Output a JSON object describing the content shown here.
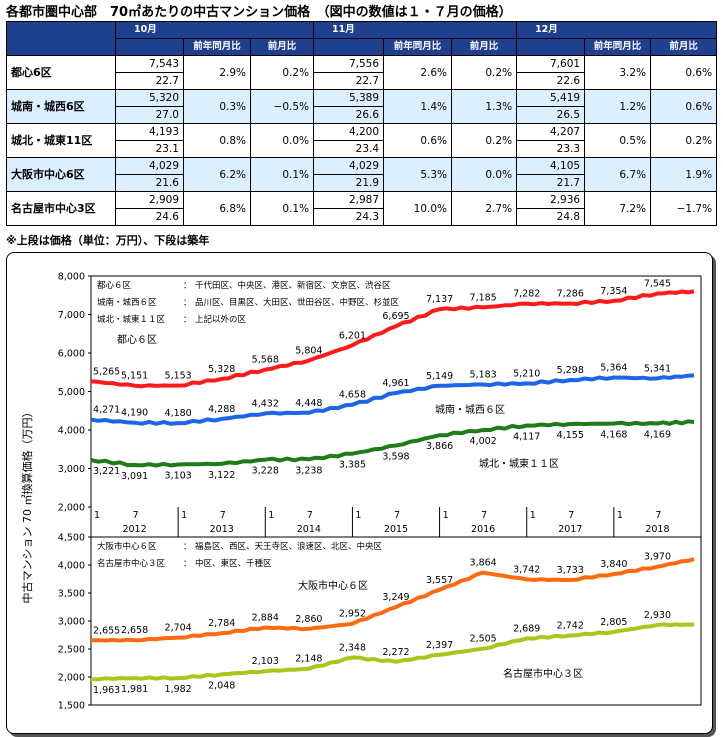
{
  "title": "各都市圏中心部　70㎡あたりの中古マンション価格　（図中の数値は１・７月の価格）",
  "table": {
    "months": [
      "10月",
      "11月",
      "12月"
    ],
    "sub_headers": [
      "前年同月比",
      "前月比"
    ],
    "rows": [
      {
        "name": "都心6区",
        "cells": [
          {
            "price": "7,543",
            "age": "22.7",
            "yoy": "2.9%",
            "mom": "0.2%"
          },
          {
            "price": "7,556",
            "age": "22.7",
            "yoy": "2.6%",
            "mom": "0.2%"
          },
          {
            "price": "7,601",
            "age": "22.6",
            "yoy": "3.2%",
            "mom": "0.6%"
          }
        ]
      },
      {
        "name": "城南・城西6区",
        "cells": [
          {
            "price": "5,320",
            "age": "27.0",
            "yoy": "0.3%",
            "mom": "−0.5%"
          },
          {
            "price": "5,389",
            "age": "26.6",
            "yoy": "1.4%",
            "mom": "1.3%"
          },
          {
            "price": "5,419",
            "age": "26.5",
            "yoy": "1.2%",
            "mom": "0.6%"
          }
        ]
      },
      {
        "name": "城北・城東11区",
        "cells": [
          {
            "price": "4,193",
            "age": "23.1",
            "yoy": "0.8%",
            "mom": "0.0%"
          },
          {
            "price": "4,200",
            "age": "23.4",
            "yoy": "0.6%",
            "mom": "0.2%"
          },
          {
            "price": "4,207",
            "age": "23.3",
            "yoy": "0.5%",
            "mom": "0.2%"
          }
        ]
      },
      {
        "name": "大阪市中心6区",
        "cells": [
          {
            "price": "4,029",
            "age": "21.6",
            "yoy": "6.2%",
            "mom": "0.1%"
          },
          {
            "price": "4,029",
            "age": "21.9",
            "yoy": "5.3%",
            "mom": "0.0%"
          },
          {
            "price": "4,105",
            "age": "21.7",
            "yoy": "6.7%",
            "mom": "1.9%"
          }
        ]
      },
      {
        "name": "名古屋市中心3区",
        "cells": [
          {
            "price": "2,909",
            "age": "24.6",
            "yoy": "6.8%",
            "mom": "0.1%"
          },
          {
            "price": "2,987",
            "age": "24.3",
            "yoy": "10.0%",
            "mom": "2.7%"
          },
          {
            "price": "2,936",
            "age": "24.8",
            "yoy": "7.2%",
            "mom": "−1.7%"
          }
        ]
      }
    ]
  },
  "note": "※上段は価格（単位：万円）、下段は築年",
  "colors": {
    "red": "#ff1a1a",
    "blue": "#1e64e8",
    "green": "#1f7a1a",
    "orange": "#ff6a10",
    "yellowgreen": "#a6c81a",
    "header": "#1f3f8f",
    "alt_row": "#dcefff"
  },
  "chart_data": [
    {
      "type": "line",
      "ylabel": "中古マンション 70 ㎡換算価格（万円）",
      "ylim": [
        2000,
        8000
      ],
      "yticks": [
        "8,000",
        "7,000",
        "6,000",
        "5,000",
        "4,000",
        "3,000",
        "2,000"
      ],
      "x_month_labels": [
        "1",
        "7",
        "1",
        "7",
        "1",
        "7",
        "1",
        "7",
        "1",
        "7",
        "1",
        "7",
        "1",
        "7"
      ],
      "x_year_labels": [
        "2012",
        "2013",
        "2014",
        "2015",
        "2016",
        "2017",
        "2018"
      ],
      "x_range": [
        2012.0,
        2019.0
      ],
      "legend_notes": [
        {
          "key": "都心６区",
          "value": "千代田区、中央区、港区、新宿区、文京区、渋谷区"
        },
        {
          "key": "城南・城西６区",
          "value": "品川区、目黒区、大田区、世田谷区、中野区、杉並区"
        },
        {
          "key": "城北・城東１１区",
          "value": "上記以外の区"
        }
      ],
      "series": [
        {
          "name": "都心６区",
          "color": "red",
          "x": [
            2012.0,
            2012.5,
            2013.0,
            2013.5,
            2014.0,
            2014.5,
            2015.0,
            2015.5,
            2016.0,
            2016.5,
            2017.0,
            2017.5,
            2018.0,
            2018.5,
            2018.92
          ],
          "y": [
            5265,
            5151,
            5153,
            5328,
            5568,
            5804,
            6201,
            6695,
            7137,
            7185,
            7282,
            7286,
            7354,
            7545,
            7601
          ],
          "labels": [
            "5,265",
            "5,151",
            "5,153",
            "5,328",
            "5,568",
            "5,804",
            "6,201",
            "6,695",
            "7,137",
            "7,185",
            "7,282",
            "7,286",
            "7,354",
            "7,545",
            ""
          ]
        },
        {
          "name": "城南・城西６区",
          "color": "blue",
          "x": [
            2012.0,
            2012.5,
            2013.0,
            2013.5,
            2014.0,
            2014.5,
            2015.0,
            2015.5,
            2016.0,
            2016.5,
            2017.0,
            2017.5,
            2018.0,
            2018.5,
            2018.92
          ],
          "y": [
            4271,
            4190,
            4180,
            4288,
            4432,
            4448,
            4658,
            4961,
            5149,
            5183,
            5210,
            5298,
            5364,
            5341,
            5419
          ],
          "labels": [
            "4,271",
            "4,190",
            "4,180",
            "4,288",
            "4,432",
            "4,448",
            "4,658",
            "4,961",
            "5,149",
            "5,183",
            "5,210",
            "5,298",
            "5,364",
            "5,341",
            ""
          ]
        },
        {
          "name": "城北・城東１１区",
          "color": "green",
          "x": [
            2012.0,
            2012.5,
            2013.0,
            2013.5,
            2014.0,
            2014.5,
            2015.0,
            2015.5,
            2016.0,
            2016.5,
            2017.0,
            2017.5,
            2018.0,
            2018.5,
            2018.92
          ],
          "y": [
            3221,
            3091,
            3103,
            3122,
            3228,
            3238,
            3385,
            3598,
            3866,
            4002,
            4117,
            4155,
            4168,
            4169,
            4207
          ],
          "labels": [
            "3,221",
            "3,091",
            "3,103",
            "3,122",
            "3,228",
            "3,238",
            "3,385",
            "3,598",
            "3,866",
            "4,002",
            "4,117",
            "4,155",
            "4,168",
            "4,169",
            ""
          ]
        }
      ],
      "series_labels": [
        "都心６区",
        "城南・城西６区",
        "城北・城東１１区"
      ]
    },
    {
      "type": "line",
      "ylim": [
        1500,
        4500
      ],
      "yticks": [
        "4,500",
        "4,000",
        "3,500",
        "3,000",
        "2,500",
        "2,000",
        "1,500"
      ],
      "x_range": [
        2012.0,
        2019.0
      ],
      "legend_notes": [
        {
          "key": "大阪市中心６区",
          "value": "福島区、西区、天王寺区、浪速区、北区、中央区"
        },
        {
          "key": "名古屋市中心３区",
          "value": "中区、東区、千種区"
        }
      ],
      "series": [
        {
          "name": "大阪市中心６区",
          "color": "orange",
          "x": [
            2012.0,
            2012.5,
            2013.0,
            2013.5,
            2014.0,
            2014.5,
            2015.0,
            2015.5,
            2016.0,
            2016.5,
            2017.0,
            2017.5,
            2018.0,
            2018.5,
            2018.92
          ],
          "y": [
            2655,
            2658,
            2704,
            2784,
            2884,
            2860,
            2952,
            3249,
            3557,
            3864,
            3742,
            3733,
            3840,
            3970,
            4105
          ],
          "labels": [
            "2,655",
            "2,658",
            "2,704",
            "2,784",
            "2,884",
            "2,860",
            "2,952",
            "3,249",
            "3,557",
            "3,864",
            "3,742",
            "3,733",
            "3,840",
            "3,970",
            ""
          ]
        },
        {
          "name": "名古屋市中心３区",
          "color": "yellowgreen",
          "x": [
            2012.0,
            2012.5,
            2013.0,
            2013.5,
            2014.0,
            2014.5,
            2015.0,
            2015.5,
            2016.0,
            2016.5,
            2017.0,
            2017.5,
            2018.0,
            2018.5,
            2018.92
          ],
          "y": [
            1963,
            1981,
            1982,
            2048,
            2103,
            2148,
            2348,
            2272,
            2397,
            2505,
            2689,
            2742,
            2805,
            2930,
            2936
          ],
          "labels": [
            "1,963",
            "1,981",
            "1,982",
            "2,048",
            "2,103",
            "2,148",
            "2,348",
            "2,272",
            "2,397",
            "2,505",
            "2,689",
            "2,742",
            "2,805",
            "2,930",
            ""
          ]
        }
      ],
      "series_labels": [
        "大阪市中心６区",
        "名古屋市中心３区"
      ]
    }
  ]
}
